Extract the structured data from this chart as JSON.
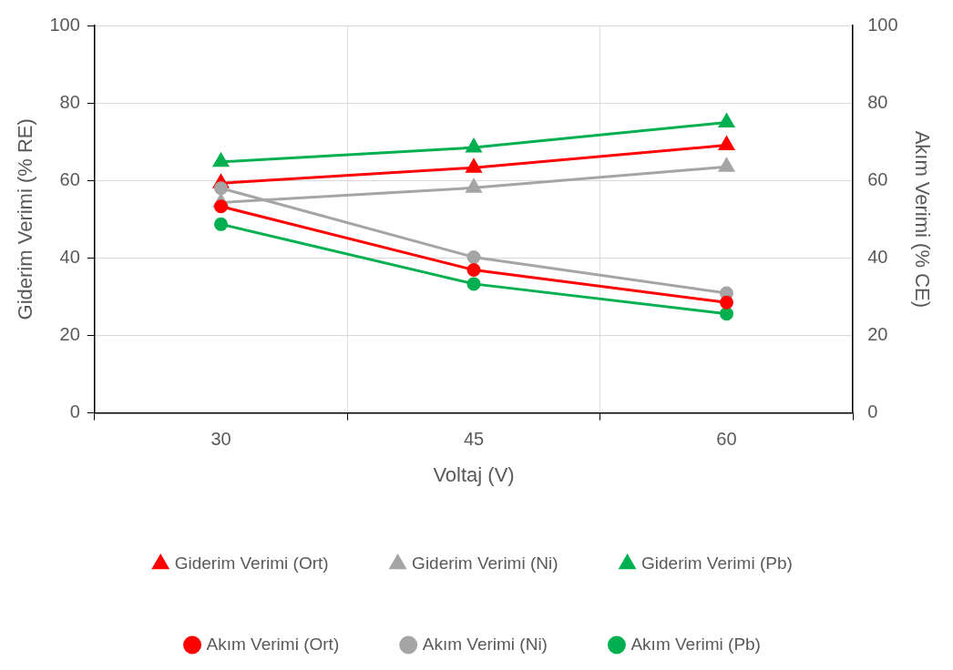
{
  "chart_data": {
    "type": "line",
    "xlabel": "Voltaj (V)",
    "ylabel": "Giderim Verimi (% RE)",
    "y2label": "Akım Verimi (% CE)",
    "categories": [
      "30",
      "45",
      "60"
    ],
    "series": [
      {
        "name": "Giderim Verimi (Ort)",
        "color": "#ff0000",
        "marker": "triangle",
        "values": [
          59.3,
          63.3,
          69.1
        ]
      },
      {
        "name": "Giderim Verimi (Ni)",
        "color": "#a5a5a5",
        "marker": "triangle",
        "values": [
          54.3,
          58.1,
          63.5
        ]
      },
      {
        "name": "Giderim Verimi (Pb)",
        "color": "#00b050",
        "marker": "triangle",
        "values": [
          64.8,
          68.5,
          75.0
        ]
      },
      {
        "name": "Akım Verimi (Ort)",
        "color": "#ff0000",
        "marker": "circle",
        "axis": "y2",
        "values": [
          53.3,
          36.9,
          28.5
        ]
      },
      {
        "name": "Akım Verimi (Ni)",
        "color": "#a5a5a5",
        "marker": "circle",
        "axis": "y2",
        "values": [
          58.0,
          40.2,
          30.9
        ]
      },
      {
        "name": "Akım Verimi (Pb)",
        "color": "#00b050",
        "marker": "circle",
        "axis": "y2",
        "values": [
          48.7,
          33.3,
          25.6
        ]
      }
    ],
    "ylim": [
      0,
      100
    ],
    "yticks": [
      0,
      20,
      40,
      60,
      80,
      100
    ],
    "y2lim": [
      0,
      100
    ],
    "y2ticks": [
      0,
      20,
      40,
      60,
      80,
      100
    ],
    "grid": true,
    "legend": "bottom",
    "line_style": "solid"
  }
}
